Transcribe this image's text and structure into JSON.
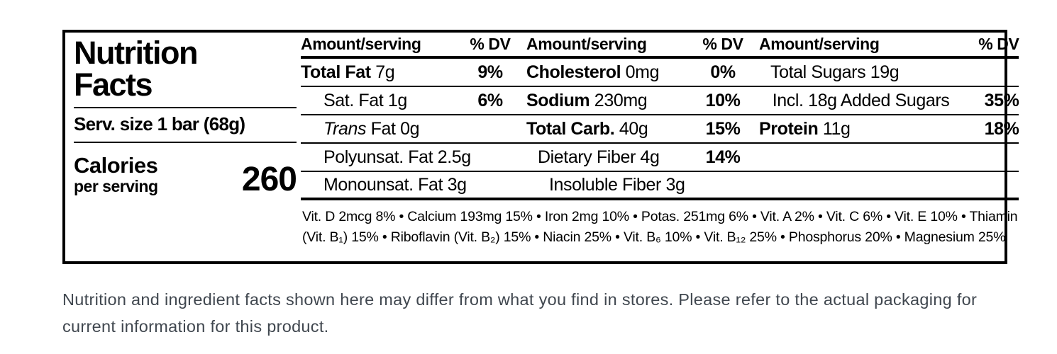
{
  "label": {
    "title_lines": [
      "Nutrition",
      "Facts"
    ],
    "serving_size": "Serv. size 1 bar (68g)",
    "calories_label": "Calories",
    "calories_sublabel": "per serving",
    "calories_value": "260",
    "column_header": {
      "amount": "Amount/serving",
      "dv": "% DV"
    },
    "columns": [
      {
        "rows": [
          {
            "strong": "Total Fat",
            "rest": " 7g",
            "dv": "9%"
          },
          {
            "rest": "Sat. Fat 1g",
            "dv": "6%"
          },
          {
            "italic": "Trans",
            "rest": " Fat 0g",
            "dv": ""
          },
          {
            "rest": "Polyunsat. Fat 2.5g",
            "dv": ""
          },
          {
            "rest": "Monounsat. Fat 3g",
            "dv": ""
          }
        ]
      },
      {
        "rows": [
          {
            "strong": "Cholesterol",
            "rest": " 0mg",
            "dv": "0%"
          },
          {
            "strong": "Sodium",
            "rest": " 230mg",
            "dv": "10%"
          },
          {
            "strong": "Total Carb.",
            "rest": " 40g",
            "dv": "15%"
          },
          {
            "rest": "Dietary Fiber 4g",
            "dv": "14%"
          },
          {
            "rest": "Insoluble Fiber 3g",
            "dv": ""
          }
        ]
      },
      {
        "rows": [
          {
            "rest": "Total Sugars 19g",
            "dv": ""
          },
          {
            "rest": "Incl. 18g Added Sugars",
            "dv": "35%"
          },
          {
            "strong": "Protein",
            "rest": " 11g",
            "dv": "18%"
          },
          {
            "rest": "",
            "dv": ""
          },
          {
            "rest": "",
            "dv": ""
          }
        ]
      }
    ],
    "micronutrient_lines": [
      "Vit. D 2mcg 8% • Calcium 193mg 15% • Iron 2mg 10% • Potas. 251mg 6% • Vit. A 2% • Vit. C 6% • Vit. E 10% • Thiamin",
      "(Vit. B₁) 15% • Riboflavin (Vit. B₂) 15% • Niacin 25% • Vit. B₆ 10% • Vit. B₁₂ 25% • Phosphorus 20% • Magnesium 25%"
    ]
  },
  "disclaimer": "Nutrition and ingredient facts shown here may differ from what you find in stores. Please refer to the actual packaging for current information for this product.",
  "colors": {
    "label_ink": "#000000",
    "disclaimer_text": "#40474f",
    "background": "#ffffff"
  }
}
